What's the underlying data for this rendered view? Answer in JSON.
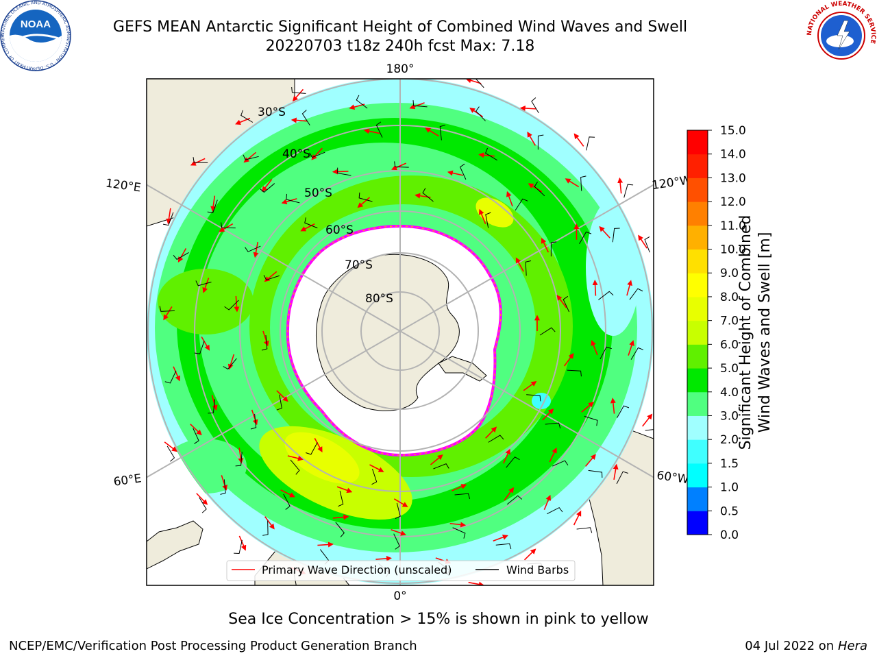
{
  "header": {
    "title_line1": "GEFS MEAN Antarctic Significant Height of Combined Wind Waves and Swell",
    "title_line2": "20220703 t18z 240h fcst   Max: 7.18"
  },
  "logos": {
    "left": {
      "icon": "noaa-logo",
      "text": "NOAA",
      "ring_text": "NATIONAL OCEANIC AND ATMOSPHERIC ADMINISTRATION · U.S. DEPARTMENT OF COMMERCE"
    },
    "right": {
      "icon": "nws-logo",
      "ring_text": "NATIONAL WEATHER SERVICE"
    }
  },
  "map": {
    "projection": "south-polar-stereographic",
    "longitude_labels": {
      "top": "180°",
      "bottom": "0°",
      "left_upper": "120°E",
      "left_lower": "60°E",
      "right_upper": "120°W",
      "right_lower": "60°W"
    },
    "latitude_labels": [
      "30°S",
      "40°S",
      "50°S",
      "60°S",
      "70°S",
      "80°S"
    ],
    "colors": {
      "land": "#efecdc",
      "ice": "#ffffff",
      "ice_edge": "#ff00ff",
      "grid": "#b3b3b3",
      "arrow": "#ff0000",
      "barb": "#000000"
    }
  },
  "legend": {
    "items": [
      {
        "label": "Primary Wave Direction (unscaled)",
        "color": "#ff0000"
      },
      {
        "label": "Wind Barbs",
        "color": "#000000"
      }
    ]
  },
  "colorbar": {
    "title_line1": "Significant Height of Combined",
    "title_line2": "Wind Waves and Swell [m]",
    "ticks": [
      "0.0",
      "0.5",
      "1.0",
      "1.5",
      "2.0",
      "3.0",
      "4.0",
      "5.0",
      "6.0",
      "7.0",
      "8.0",
      "9.0",
      "10.0",
      "11.0",
      "12.0",
      "13.0",
      "14.0",
      "15.0"
    ],
    "colors": [
      "#0000ff",
      "#0080ff",
      "#00ffff",
      "#40ffff",
      "#a0ffff",
      "#50ff80",
      "#00e800",
      "#60f000",
      "#c8ff00",
      "#e8ff00",
      "#ffff00",
      "#ffe000",
      "#ffb000",
      "#ff8000",
      "#ff5000",
      "#ff2000",
      "#ff0000"
    ]
  },
  "footer": {
    "ice_note": "Sea Ice Concentration > 15% is shown in pink to yellow",
    "branch": "NCEP/EMC/Verification Post Processing Product Generation Branch",
    "date": "04 Jul 2022 on ",
    "machine": "Hera"
  }
}
